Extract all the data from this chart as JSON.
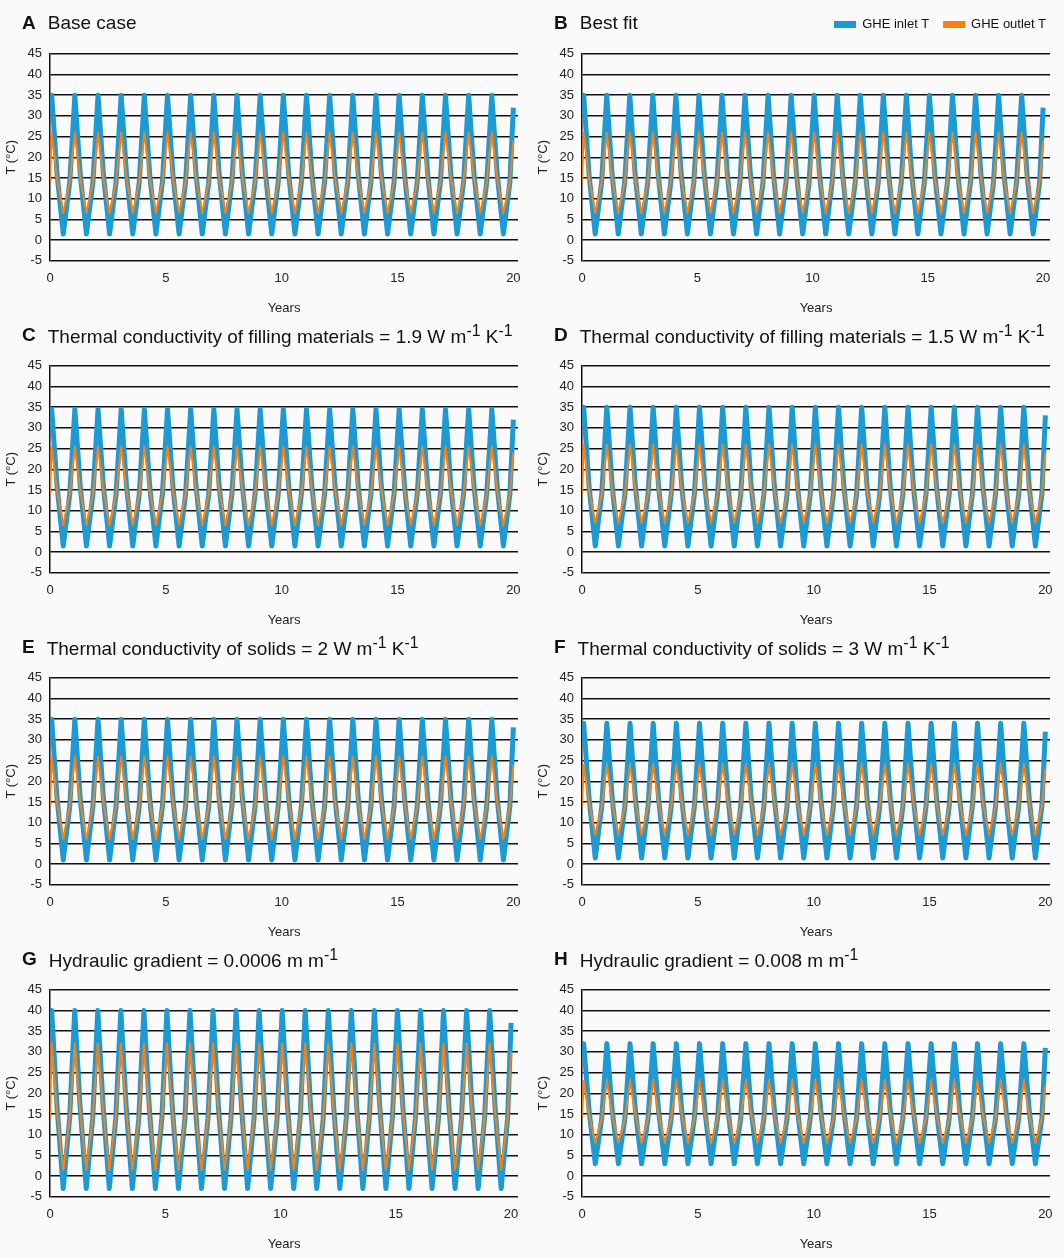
{
  "chart_data": [
    {
      "type": "line",
      "title": "Base case",
      "annotations": [
        "A"
      ],
      "xlabel": "Years",
      "ylabel": "T (°C)",
      "xlim": [
        0,
        20.2
      ],
      "xticks": [
        0,
        5,
        10,
        15,
        20
      ],
      "ylim": [
        -5,
        45
      ],
      "yticks": [
        -5,
        0,
        5,
        10,
        15,
        20,
        25,
        30,
        35,
        40,
        45
      ],
      "grid": "y",
      "marker": "none",
      "x": [
        0,
        0.07,
        0.3,
        0.57,
        0.85,
        1.07,
        1.3,
        1.57,
        1.85,
        2.07,
        2.3,
        2.57,
        2.85,
        3.07,
        3.3,
        3.57,
        3.85,
        4.07,
        4.3,
        4.57,
        4.85,
        5.07,
        5.3,
        5.57,
        5.85,
        6.07,
        6.3,
        6.57,
        6.85,
        7.07,
        7.3,
        7.57,
        7.85,
        8.07,
        8.3,
        8.57,
        8.85,
        9.07,
        9.3,
        9.57,
        9.85,
        10.07,
        10.3,
        10.57,
        10.85,
        11.07,
        11.3,
        11.57,
        11.85,
        12.07,
        12.3,
        12.57,
        12.85,
        13.07,
        13.3,
        13.57,
        13.85,
        14.07,
        14.3,
        14.57,
        14.85,
        15.07,
        15.3,
        15.57,
        15.85,
        16.07,
        16.3,
        16.57,
        16.85,
        17.07,
        17.3,
        17.57,
        17.85,
        18.07,
        18.3,
        18.57,
        18.85,
        19.07,
        19.3,
        19.57,
        19.85,
        20
      ],
      "series": [
        {
          "color": "#1b9ad6",
          "values": [
            31,
            35,
            16,
            1.5,
            14,
            35,
            16,
            1.5,
            14,
            35,
            16,
            1.5,
            14,
            35,
            16,
            1.5,
            14,
            35,
            16,
            1.5,
            14,
            35,
            16,
            1.5,
            14,
            35,
            16,
            1.5,
            14,
            35,
            16,
            1.5,
            14,
            35,
            16,
            1.5,
            14,
            35,
            16,
            1.5,
            14,
            35,
            16,
            1.5,
            14,
            35,
            16,
            1.5,
            14,
            35,
            16,
            1.5,
            14,
            35,
            16,
            1.5,
            14,
            35,
            16,
            1.5,
            14,
            35,
            16,
            1.5,
            14,
            35,
            16,
            1.5,
            14,
            35,
            16,
            1.5,
            14,
            35,
            16,
            1.5,
            14,
            35,
            16,
            1.5,
            14,
            32
          ]
        },
        {
          "color": "#ff7f0e",
          "values": [
            14,
            26,
            15,
            6.5,
            14,
            26,
            15,
            6.5,
            14,
            26,
            15,
            6.5,
            14,
            26,
            15,
            6.5,
            14,
            26,
            15,
            6.5,
            14,
            26,
            15,
            6.5,
            14,
            26,
            15,
            6.5,
            14,
            26,
            15,
            6.5,
            14,
            26,
            15,
            6.5,
            14,
            26,
            15,
            6.5,
            14,
            26,
            15,
            6.5,
            14,
            26,
            15,
            6.5,
            14,
            26,
            15,
            6.5,
            14,
            26,
            15,
            6.5,
            14,
            26,
            15,
            6.5,
            14,
            26,
            15,
            6.5,
            14,
            26,
            15,
            6.5,
            14,
            26,
            15,
            6.5,
            14,
            26,
            15,
            6.5,
            14,
            26,
            15,
            6.5,
            14,
            24
          ]
        }
      ]
    },
    {
      "type": "line",
      "title": "Best fit",
      "annotations": [
        "B"
      ],
      "xlabel": "Years",
      "ylabel": "T (°C)",
      "xlim": [
        0,
        20.3
      ],
      "xticks": [
        0,
        5,
        10,
        15,
        20
      ],
      "ylim": [
        -5,
        45
      ],
      "yticks": [
        -5,
        0,
        5,
        10,
        15,
        20,
        25,
        30,
        35,
        40,
        45
      ],
      "grid": "y",
      "marker": "none",
      "legend": "top right",
      "x": [
        0,
        0.07,
        0.3,
        0.57,
        0.85,
        1.07,
        1.3,
        1.57,
        1.85,
        2.07,
        2.3,
        2.57,
        2.85,
        3.07,
        3.3,
        3.57,
        3.85,
        4.07,
        4.3,
        4.57,
        4.85,
        5.07,
        5.3,
        5.57,
        5.85,
        6.07,
        6.3,
        6.57,
        6.85,
        7.07,
        7.3,
        7.57,
        7.85,
        8.07,
        8.3,
        8.57,
        8.85,
        9.07,
        9.3,
        9.57,
        9.85,
        10.07,
        10.3,
        10.57,
        10.85,
        11.07,
        11.3,
        11.57,
        11.85,
        12.07,
        12.3,
        12.57,
        12.85,
        13.07,
        13.3,
        13.57,
        13.85,
        14.07,
        14.3,
        14.57,
        14.85,
        15.07,
        15.3,
        15.57,
        15.85,
        16.07,
        16.3,
        16.57,
        16.85,
        17.07,
        17.3,
        17.57,
        17.85,
        18.07,
        18.3,
        18.57,
        18.85,
        19.07,
        19.3,
        19.57,
        19.85,
        20
      ],
      "series": [
        {
          "name": "GHE inlet T",
          "color": "#1b9ad6",
          "values": [
            31,
            35,
            16,
            1.5,
            14,
            35,
            16,
            1.5,
            14,
            35,
            16,
            1.5,
            14,
            35,
            16,
            1.5,
            14,
            35,
            16,
            1.5,
            14,
            35,
            16,
            1.5,
            14,
            35,
            16,
            1.5,
            14,
            35,
            16,
            1.5,
            14,
            35,
            16,
            1.5,
            14,
            35,
            16,
            1.5,
            14,
            35,
            16,
            1.5,
            14,
            35,
            16,
            1.5,
            14,
            35,
            16,
            1.5,
            14,
            35,
            16,
            1.5,
            14,
            35,
            16,
            1.5,
            14,
            35,
            16,
            1.5,
            14,
            35,
            16,
            1.5,
            14,
            35,
            16,
            1.5,
            14,
            35,
            16,
            1.5,
            14,
            35,
            16,
            1.5,
            14,
            32
          ]
        },
        {
          "name": "GHE outlet T",
          "color": "#ff7f0e",
          "values": [
            14,
            26,
            15,
            6.5,
            14,
            26,
            15,
            6.5,
            14,
            26,
            15,
            6.5,
            14,
            26,
            15,
            6.5,
            14,
            26,
            15,
            6.5,
            14,
            26,
            15,
            6.5,
            14,
            26,
            15,
            6.5,
            14,
            26,
            15,
            6.5,
            14,
            26,
            15,
            6.5,
            14,
            26,
            15,
            6.5,
            14,
            26,
            15,
            6.5,
            14,
            26,
            15,
            6.5,
            14,
            26,
            15,
            6.5,
            14,
            26,
            15,
            6.5,
            14,
            26,
            15,
            6.5,
            14,
            26,
            15,
            6.5,
            14,
            26,
            15,
            6.5,
            14,
            26,
            15,
            6.5,
            14,
            26,
            15,
            6.5,
            14,
            26,
            15,
            6.5,
            14,
            24
          ]
        }
      ]
    },
    {
      "type": "line",
      "title": "Thermal conductivity of filling materials = 1.9 W m$^{-1}$ K$^{-1}$",
      "annotations": [
        "C"
      ],
      "xlabel": "Years",
      "ylabel": "T (°C)",
      "xlim": [
        0,
        20.2
      ],
      "xticks": [
        0,
        5,
        10,
        15,
        20
      ],
      "ylim": [
        -5,
        45
      ],
      "yticks": [
        -5,
        0,
        5,
        10,
        15,
        20,
        25,
        30,
        35,
        40,
        45
      ],
      "grid": "y",
      "marker": "none",
      "x": [
        0,
        0.07,
        0.3,
        0.57,
        0.85,
        1.07,
        1.3,
        1.57,
        1.85,
        2.07,
        2.3,
        2.57,
        2.85,
        3.07,
        3.3,
        3.57,
        3.85,
        4.07,
        4.3,
        4.57,
        4.85,
        5.07,
        5.3,
        5.57,
        5.85,
        6.07,
        6.3,
        6.57,
        6.85,
        7.07,
        7.3,
        7.57,
        7.85,
        8.07,
        8.3,
        8.57,
        8.85,
        9.07,
        9.3,
        9.57,
        9.85,
        10.07,
        10.3,
        10.57,
        10.85,
        11.07,
        11.3,
        11.57,
        11.85,
        12.07,
        12.3,
        12.57,
        12.85,
        13.07,
        13.3,
        13.57,
        13.85,
        14.07,
        14.3,
        14.57,
        14.85,
        15.07,
        15.3,
        15.57,
        15.85,
        16.07,
        16.3,
        16.57,
        16.85,
        17.07,
        17.3,
        17.57,
        17.85,
        18.07,
        18.3,
        18.57,
        18.85,
        19.07,
        19.3,
        19.57,
        19.85,
        20
      ],
      "series": [
        {
          "color": "#1b9ad6",
          "values": [
            31,
            34.5,
            16,
            1.5,
            14,
            34.5,
            16,
            1.5,
            14,
            34.5,
            16,
            1.5,
            14,
            34.5,
            16,
            1.5,
            14,
            34.5,
            16,
            1.5,
            14,
            34.5,
            16,
            1.5,
            14,
            34.5,
            16,
            1.5,
            14,
            34.5,
            16,
            1.5,
            14,
            34.5,
            16,
            1.5,
            14,
            34.5,
            16,
            1.5,
            14,
            34.5,
            16,
            1.5,
            14,
            34.5,
            16,
            1.5,
            14,
            34.5,
            16,
            1.5,
            14,
            34.5,
            16,
            1.5,
            14,
            34.5,
            16,
            1.5,
            14,
            34.5,
            16,
            1.5,
            14,
            34.5,
            16,
            1.5,
            14,
            34.5,
            16,
            1.5,
            14,
            34.5,
            16,
            1.5,
            14,
            34.5,
            16,
            1.5,
            14,
            32
          ]
        },
        {
          "color": "#ff7f0e",
          "values": [
            14,
            25.5,
            15,
            6.5,
            14,
            25.5,
            15,
            6.5,
            14,
            25.5,
            15,
            6.5,
            14,
            25.5,
            15,
            6.5,
            14,
            25.5,
            15,
            6.5,
            14,
            25.5,
            15,
            6.5,
            14,
            25.5,
            15,
            6.5,
            14,
            25.5,
            15,
            6.5,
            14,
            25.5,
            15,
            6.5,
            14,
            25.5,
            15,
            6.5,
            14,
            25.5,
            15,
            6.5,
            14,
            25.5,
            15,
            6.5,
            14,
            25.5,
            15,
            6.5,
            14,
            25.5,
            15,
            6.5,
            14,
            25.5,
            15,
            6.5,
            14,
            25.5,
            15,
            6.5,
            14,
            25.5,
            15,
            6.5,
            14,
            25.5,
            15,
            6.5,
            14,
            25.5,
            15,
            6.5,
            14,
            25.5,
            15,
            6.5,
            14,
            24
          ]
        }
      ]
    },
    {
      "type": "line",
      "title": "Thermal conductivity of filling materials = 1.5 W m$^{-1}$ K$^{-1}$",
      "annotations": [
        "D"
      ],
      "xlabel": "Years",
      "ylabel": "T (°C)",
      "xlim": [
        0,
        20.2
      ],
      "xticks": [
        0,
        5,
        10,
        15,
        20
      ],
      "ylim": [
        -5,
        45
      ],
      "yticks": [
        -5,
        0,
        5,
        10,
        15,
        20,
        25,
        30,
        35,
        40,
        45
      ],
      "grid": "y",
      "marker": "none",
      "x": [
        0,
        0.07,
        0.3,
        0.57,
        0.85,
        1.07,
        1.3,
        1.57,
        1.85,
        2.07,
        2.3,
        2.57,
        2.85,
        3.07,
        3.3,
        3.57,
        3.85,
        4.07,
        4.3,
        4.57,
        4.85,
        5.07,
        5.3,
        5.57,
        5.85,
        6.07,
        6.3,
        6.57,
        6.85,
        7.07,
        7.3,
        7.57,
        7.85,
        8.07,
        8.3,
        8.57,
        8.85,
        9.07,
        9.3,
        9.57,
        9.85,
        10.07,
        10.3,
        10.57,
        10.85,
        11.07,
        11.3,
        11.57,
        11.85,
        12.07,
        12.3,
        12.57,
        12.85,
        13.07,
        13.3,
        13.57,
        13.85,
        14.07,
        14.3,
        14.57,
        14.85,
        15.07,
        15.3,
        15.57,
        15.85,
        16.07,
        16.3,
        16.57,
        16.85,
        17.07,
        17.3,
        17.57,
        17.85,
        18.07,
        18.3,
        18.57,
        18.85,
        19.07,
        19.3,
        19.57,
        19.85,
        20
      ],
      "series": [
        {
          "color": "#1b9ad6",
          "values": [
            31,
            35,
            16,
            1.5,
            14,
            35,
            16,
            1.5,
            14,
            35,
            16,
            1.5,
            14,
            35,
            16,
            1.5,
            14,
            35,
            16,
            1.5,
            14,
            35,
            16,
            1.5,
            14,
            35,
            16,
            1.5,
            14,
            35,
            16,
            1.5,
            14,
            35,
            16,
            1.5,
            14,
            35,
            16,
            1.5,
            14,
            35,
            16,
            1.5,
            14,
            35,
            16,
            1.5,
            14,
            35,
            16,
            1.5,
            14,
            35,
            16,
            1.5,
            14,
            35,
            16,
            1.5,
            14,
            35,
            16,
            1.5,
            14,
            35,
            16,
            1.5,
            14,
            35,
            16,
            1.5,
            14,
            35,
            16,
            1.5,
            14,
            35,
            16,
            1.5,
            14,
            33
          ]
        },
        {
          "color": "#ff7f0e",
          "values": [
            14,
            26,
            15,
            7,
            14,
            26,
            15,
            7,
            14,
            26,
            15,
            7,
            14,
            26,
            15,
            7,
            14,
            26,
            15,
            7,
            14,
            26,
            15,
            7,
            14,
            26,
            15,
            7,
            14,
            26,
            15,
            7,
            14,
            26,
            15,
            7,
            14,
            26,
            15,
            7,
            14,
            26,
            15,
            7,
            14,
            26,
            15,
            7,
            14,
            26,
            15,
            7,
            14,
            26,
            15,
            7,
            14,
            26,
            15,
            7,
            14,
            26,
            15,
            7,
            14,
            26,
            15,
            7,
            14,
            26,
            15,
            7,
            14,
            26,
            15,
            7,
            14,
            26,
            15,
            7,
            14,
            24
          ]
        }
      ]
    },
    {
      "type": "line",
      "title": "Thermal conductivity of solids = 2 W m$^{-1}$ K$^{-1}$",
      "annotations": [
        "E"
      ],
      "xlabel": "Years",
      "ylabel": "T (°C)",
      "xlim": [
        0,
        20.2
      ],
      "xticks": [
        0,
        5,
        10,
        15,
        20
      ],
      "ylim": [
        -5,
        45
      ],
      "yticks": [
        -5,
        0,
        5,
        10,
        15,
        20,
        25,
        30,
        35,
        40,
        45
      ],
      "grid": "y",
      "marker": "none",
      "x": [
        0,
        0.07,
        0.3,
        0.57,
        0.85,
        1.07,
        1.3,
        1.57,
        1.85,
        2.07,
        2.3,
        2.57,
        2.85,
        3.07,
        3.3,
        3.57,
        3.85,
        4.07,
        4.3,
        4.57,
        4.85,
        5.07,
        5.3,
        5.57,
        5.85,
        6.07,
        6.3,
        6.57,
        6.85,
        7.07,
        7.3,
        7.57,
        7.85,
        8.07,
        8.3,
        8.57,
        8.85,
        9.07,
        9.3,
        9.57,
        9.85,
        10.07,
        10.3,
        10.57,
        10.85,
        11.07,
        11.3,
        11.57,
        11.85,
        12.07,
        12.3,
        12.57,
        12.85,
        13.07,
        13.3,
        13.57,
        13.85,
        14.07,
        14.3,
        14.57,
        14.85,
        15.07,
        15.3,
        15.57,
        15.85,
        16.07,
        16.3,
        16.57,
        16.85,
        17.07,
        17.3,
        17.57,
        17.85,
        18.07,
        18.3,
        18.57,
        18.85,
        19.07,
        19.3,
        19.57,
        19.85,
        20
      ],
      "series": [
        {
          "color": "#1b9ad6",
          "values": [
            32,
            35,
            16,
            1,
            14,
            35,
            16,
            1,
            14,
            35,
            16,
            1,
            14,
            35,
            16,
            1,
            14,
            35,
            16,
            1,
            14,
            35,
            16,
            1,
            14,
            35,
            16,
            1,
            14,
            35,
            16,
            1,
            14,
            35,
            16,
            1,
            14,
            35,
            16,
            1,
            14,
            35,
            16,
            1,
            14,
            35,
            16,
            1,
            14,
            35,
            16,
            1,
            14,
            35,
            16,
            1,
            14,
            35,
            16,
            1,
            14,
            35,
            16,
            1,
            14,
            35,
            16,
            1,
            14,
            35,
            16,
            1,
            14,
            35,
            16,
            1,
            14,
            35,
            16,
            1,
            14,
            33
          ]
        },
        {
          "color": "#ff7f0e",
          "values": [
            14,
            26,
            15,
            6,
            14,
            26,
            15,
            6,
            14,
            26,
            15,
            6,
            14,
            26,
            15,
            6,
            14,
            26,
            15,
            6,
            14,
            26,
            15,
            6,
            14,
            26,
            15,
            6,
            14,
            26,
            15,
            6,
            14,
            26,
            15,
            6,
            14,
            26,
            15,
            6,
            14,
            26,
            15,
            6,
            14,
            26,
            15,
            6,
            14,
            26,
            15,
            6,
            14,
            26,
            15,
            6,
            14,
            26,
            15,
            6,
            14,
            26,
            15,
            6,
            14,
            26,
            15,
            6,
            14,
            26,
            15,
            6,
            14,
            26,
            15,
            6,
            14,
            26,
            15,
            6,
            14,
            24
          ]
        }
      ]
    },
    {
      "type": "line",
      "title": "Thermal conductivity of solids = 3 W m$^{-1}$ K$^{-1}$",
      "annotations": [
        "F"
      ],
      "xlabel": "Years",
      "ylabel": "T (°C)",
      "xlim": [
        0,
        20.2
      ],
      "xticks": [
        0,
        5,
        10,
        15,
        20
      ],
      "ylim": [
        -5,
        45
      ],
      "yticks": [
        -5,
        0,
        5,
        10,
        15,
        20,
        25,
        30,
        35,
        40,
        45
      ],
      "grid": "y",
      "marker": "none",
      "x": [
        0,
        0.07,
        0.3,
        0.57,
        0.85,
        1.07,
        1.3,
        1.57,
        1.85,
        2.07,
        2.3,
        2.57,
        2.85,
        3.07,
        3.3,
        3.57,
        3.85,
        4.07,
        4.3,
        4.57,
        4.85,
        5.07,
        5.3,
        5.57,
        5.85,
        6.07,
        6.3,
        6.57,
        6.85,
        7.07,
        7.3,
        7.57,
        7.85,
        8.07,
        8.3,
        8.57,
        8.85,
        9.07,
        9.3,
        9.57,
        9.85,
        10.07,
        10.3,
        10.57,
        10.85,
        11.07,
        11.3,
        11.57,
        11.85,
        12.07,
        12.3,
        12.57,
        12.85,
        13.07,
        13.3,
        13.57,
        13.85,
        14.07,
        14.3,
        14.57,
        14.85,
        15.07,
        15.3,
        15.57,
        15.85,
        16.07,
        16.3,
        16.57,
        16.85,
        17.07,
        17.3,
        17.57,
        17.85,
        18.07,
        18.3,
        18.57,
        18.85,
        19.07,
        19.3,
        19.57,
        19.85,
        20
      ],
      "series": [
        {
          "color": "#1b9ad6",
          "values": [
            30,
            34,
            16,
            1.5,
            14,
            34,
            16,
            1.5,
            14,
            34,
            16,
            1.5,
            14,
            34,
            16,
            1.5,
            14,
            34,
            16,
            1.5,
            14,
            34,
            16,
            1.5,
            14,
            34,
            16,
            1.5,
            14,
            34,
            16,
            1.5,
            14,
            34,
            16,
            1.5,
            14,
            34,
            16,
            1.5,
            14,
            34,
            16,
            1.5,
            14,
            34,
            16,
            1.5,
            14,
            34,
            16,
            1.5,
            14,
            34,
            16,
            1.5,
            14,
            34,
            16,
            1.5,
            14,
            34,
            16,
            1.5,
            14,
            34,
            16,
            1.5,
            14,
            34,
            16,
            1.5,
            14,
            34,
            16,
            1.5,
            14,
            34,
            16,
            1.5,
            14,
            32
          ]
        },
        {
          "color": "#ff7f0e",
          "values": [
            14,
            24,
            15,
            7,
            14,
            24,
            15,
            7,
            14,
            24,
            15,
            7,
            14,
            24,
            15,
            7,
            14,
            24,
            15,
            7,
            14,
            24,
            15,
            7,
            14,
            24,
            15,
            7,
            14,
            24,
            15,
            7,
            14,
            24,
            15,
            7,
            14,
            24,
            15,
            7,
            14,
            24,
            15,
            7,
            14,
            24,
            15,
            7,
            14,
            24,
            15,
            7,
            14,
            24,
            15,
            7,
            14,
            24,
            15,
            7,
            14,
            24,
            15,
            7,
            14,
            24,
            15,
            7,
            14,
            24,
            15,
            7,
            14,
            24,
            15,
            7,
            14,
            24,
            15,
            7,
            14,
            23
          ]
        }
      ]
    },
    {
      "type": "line",
      "title": "Hydraulic gradient = 0.0006 m m$^{-1}$",
      "annotations": [
        "G"
      ],
      "xlabel": "Years",
      "ylabel": "T (°C)",
      "xlim": [
        0,
        20.3
      ],
      "xticks": [
        0,
        5,
        10,
        15,
        20
      ],
      "ylim": [
        -5,
        45
      ],
      "yticks": [
        -5,
        0,
        5,
        10,
        15,
        20,
        25,
        30,
        35,
        40,
        45
      ],
      "grid": "y",
      "marker": "none",
      "x": [
        0,
        0.07,
        0.3,
        0.57,
        0.85,
        1.07,
        1.3,
        1.57,
        1.85,
        2.07,
        2.3,
        2.57,
        2.85,
        3.07,
        3.3,
        3.57,
        3.85,
        4.07,
        4.3,
        4.57,
        4.85,
        5.07,
        5.3,
        5.57,
        5.85,
        6.07,
        6.3,
        6.57,
        6.85,
        7.07,
        7.3,
        7.57,
        7.85,
        8.07,
        8.3,
        8.57,
        8.85,
        9.07,
        9.3,
        9.57,
        9.85,
        10.07,
        10.3,
        10.57,
        10.85,
        11.07,
        11.3,
        11.57,
        11.85,
        12.07,
        12.3,
        12.57,
        12.85,
        13.07,
        13.3,
        13.57,
        13.85,
        14.07,
        14.3,
        14.57,
        14.85,
        15.07,
        15.3,
        15.57,
        15.85,
        16.07,
        16.3,
        16.57,
        16.85,
        17.07,
        17.3,
        17.57,
        17.85,
        18.07,
        18.3,
        18.57,
        18.85,
        19.07,
        19.3,
        19.57,
        19.85,
        20
      ],
      "series": [
        {
          "color": "#1b9ad6",
          "values": [
            36,
            40,
            17,
            -3,
            14,
            40,
            17,
            -3,
            14,
            40,
            17,
            -3,
            14,
            40,
            17,
            -3,
            14,
            40,
            17,
            -3,
            14,
            40,
            17,
            -3,
            14,
            40,
            17,
            -3,
            14,
            40,
            17,
            -3,
            14,
            40,
            17,
            -3,
            14,
            40,
            17,
            -3,
            14,
            40,
            17,
            -3,
            14,
            40,
            17,
            -3,
            14,
            40,
            17,
            -3,
            14,
            40,
            17,
            -3,
            14,
            40,
            17,
            -3,
            14,
            40,
            17,
            -3,
            14,
            40,
            17,
            -3,
            14,
            40,
            17,
            -3,
            14,
            40,
            17,
            -3,
            14,
            40,
            17,
            -3,
            14,
            37
          ]
        },
        {
          "color": "#ff7f0e",
          "values": [
            14,
            32,
            16,
            1.5,
            14,
            32,
            16,
            1.5,
            14,
            32,
            16,
            1.5,
            14,
            32,
            16,
            1.5,
            14,
            32,
            16,
            1.5,
            14,
            32,
            16,
            1.5,
            14,
            32,
            16,
            1.5,
            14,
            32,
            16,
            1.5,
            14,
            32,
            16,
            1.5,
            14,
            32,
            16,
            1.5,
            14,
            32,
            16,
            1.5,
            14,
            32,
            16,
            1.5,
            14,
            32,
            16,
            1.5,
            14,
            32,
            16,
            1.5,
            14,
            32,
            16,
            1.5,
            14,
            32,
            16,
            1.5,
            14,
            32,
            16,
            1.5,
            14,
            32,
            16,
            1.5,
            14,
            32,
            16,
            1.5,
            14,
            32,
            16,
            1.5,
            14,
            30
          ]
        }
      ]
    },
    {
      "type": "line",
      "title": "Hydraulic gradient = 0.008 m m$^{-1}$",
      "annotations": [
        "H"
      ],
      "xlabel": "Years",
      "ylabel": "T (°C)",
      "xlim": [
        0,
        20.2
      ],
      "xticks": [
        0,
        5,
        10,
        15,
        20
      ],
      "ylim": [
        -5,
        45
      ],
      "yticks": [
        -5,
        0,
        5,
        10,
        15,
        20,
        25,
        30,
        35,
        40,
        45
      ],
      "grid": "y",
      "marker": "none",
      "x": [
        0,
        0.07,
        0.3,
        0.57,
        0.85,
        1.07,
        1.3,
        1.57,
        1.85,
        2.07,
        2.3,
        2.57,
        2.85,
        3.07,
        3.3,
        3.57,
        3.85,
        4.07,
        4.3,
        4.57,
        4.85,
        5.07,
        5.3,
        5.57,
        5.85,
        6.07,
        6.3,
        6.57,
        6.85,
        7.07,
        7.3,
        7.57,
        7.85,
        8.07,
        8.3,
        8.57,
        8.85,
        9.07,
        9.3,
        9.57,
        9.85,
        10.07,
        10.3,
        10.57,
        10.85,
        11.07,
        11.3,
        11.57,
        11.85,
        12.07,
        12.3,
        12.57,
        12.85,
        13.07,
        13.3,
        13.57,
        13.85,
        14.07,
        14.3,
        14.57,
        14.85,
        15.07,
        15.3,
        15.57,
        15.85,
        16.07,
        16.3,
        16.57,
        16.85,
        17.07,
        17.3,
        17.57,
        17.85,
        18.07,
        18.3,
        18.57,
        18.85,
        19.07,
        19.3,
        19.57,
        19.85,
        20
      ],
      "series": [
        {
          "color": "#1b9ad6",
          "values": [
            29,
            32,
            16,
            3,
            14,
            32,
            16,
            3,
            14,
            32,
            16,
            3,
            14,
            32,
            16,
            3,
            14,
            32,
            16,
            3,
            14,
            32,
            16,
            3,
            14,
            32,
            16,
            3,
            14,
            32,
            16,
            3,
            14,
            32,
            16,
            3,
            14,
            32,
            16,
            3,
            14,
            32,
            16,
            3,
            14,
            32,
            16,
            3,
            14,
            32,
            16,
            3,
            14,
            32,
            16,
            3,
            14,
            32,
            16,
            3,
            14,
            32,
            16,
            3,
            14,
            32,
            16,
            3,
            14,
            32,
            16,
            3,
            14,
            32,
            16,
            3,
            14,
            32,
            16,
            3,
            14,
            31
          ]
        },
        {
          "color": "#ff7f0e",
          "values": [
            14,
            23,
            15,
            8,
            14,
            23,
            15,
            8,
            14,
            23,
            15,
            8,
            14,
            23,
            15,
            8,
            14,
            23,
            15,
            8,
            14,
            23,
            15,
            8,
            14,
            23,
            15,
            8,
            14,
            23,
            15,
            8,
            14,
            23,
            15,
            8,
            14,
            23,
            15,
            8,
            14,
            23,
            15,
            8,
            14,
            23,
            15,
            8,
            14,
            23,
            15,
            8,
            14,
            23,
            15,
            8,
            14,
            23,
            15,
            8,
            14,
            23,
            15,
            8,
            14,
            23,
            15,
            8,
            14,
            23,
            15,
            8,
            14,
            23,
            15,
            8,
            14,
            23,
            15,
            8,
            14,
            22
          ]
        }
      ]
    }
  ]
}
